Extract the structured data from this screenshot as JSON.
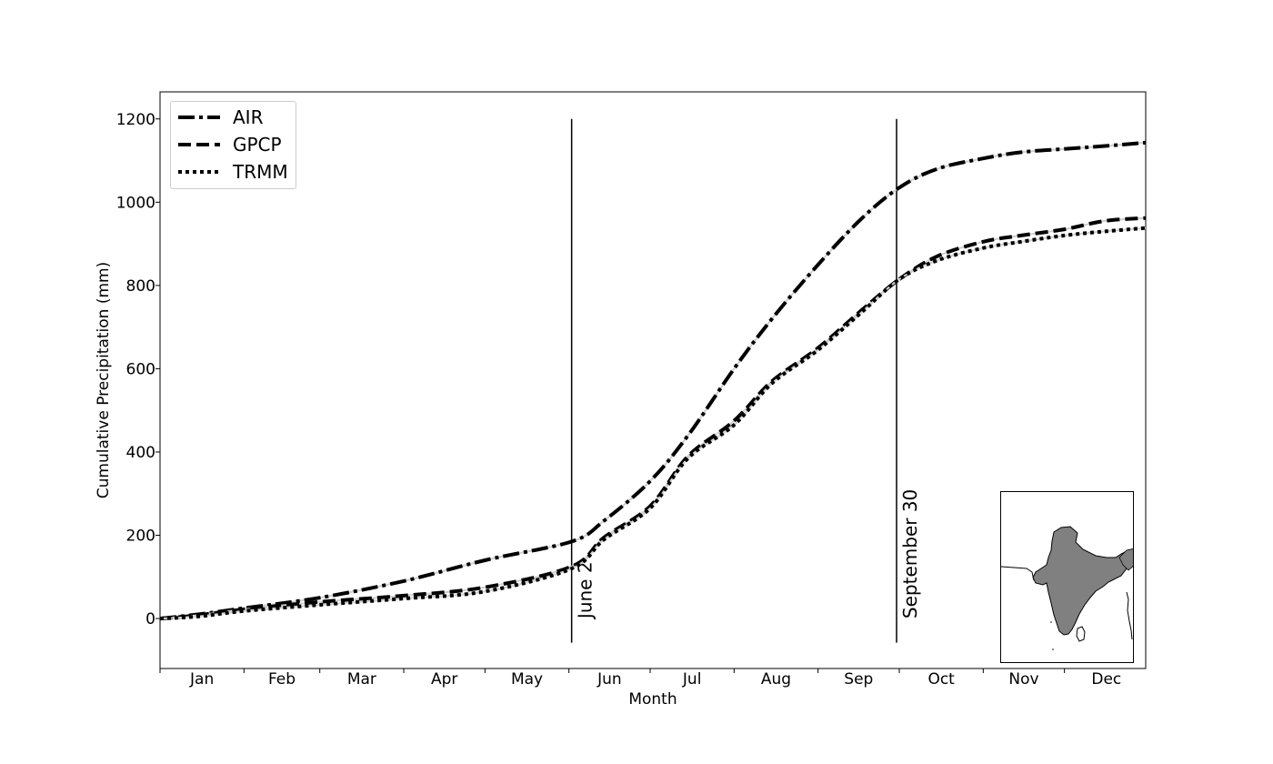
{
  "chart_data": {
    "type": "line",
    "xlabel": "Month",
    "ylabel": "Cumulative Precipitation (mm)",
    "x_unit": "day of year",
    "xlim": [
      1,
      365
    ],
    "ylim": [
      -120,
      1265
    ],
    "yticks": [
      0,
      200,
      400,
      600,
      800,
      1000,
      1200
    ],
    "months": [
      "Jan",
      "Feb",
      "Mar",
      "Apr",
      "May",
      "Jun",
      "Jul",
      "Aug",
      "Sep",
      "Oct",
      "Nov",
      "Dec"
    ],
    "grid": false,
    "legend_position": "top-left",
    "series": [
      {
        "name": "AIR",
        "style": "dashdot",
        "x": [
          1,
          15,
          32,
          60,
          91,
          121,
          153,
          165,
          182,
          196,
          213,
          227,
          244,
          260,
          274,
          288,
          305,
          319,
          335,
          350,
          365
        ],
        "y": [
          0,
          10,
          25,
          50,
          90,
          140,
          185,
          235,
          330,
          440,
          600,
          720,
          850,
          960,
          1035,
          1080,
          1105,
          1120,
          1128,
          1135,
          1143
        ]
      },
      {
        "name": "GPCP",
        "style": "dashed",
        "x": [
          1,
          15,
          32,
          60,
          91,
          121,
          153,
          165,
          182,
          196,
          213,
          227,
          244,
          260,
          274,
          288,
          305,
          319,
          335,
          350,
          365
        ],
        "y": [
          0,
          8,
          22,
          40,
          55,
          75,
          125,
          195,
          270,
          390,
          475,
          570,
          650,
          740,
          815,
          870,
          905,
          920,
          935,
          955,
          962
        ]
      },
      {
        "name": "TRMM",
        "style": "dotted",
        "x": [
          1,
          15,
          32,
          60,
          91,
          121,
          153,
          165,
          182,
          196,
          213,
          227,
          244,
          260,
          274,
          288,
          305,
          319,
          335,
          350,
          365
        ],
        "y": [
          0,
          5,
          18,
          33,
          48,
          65,
          120,
          190,
          265,
          385,
          465,
          565,
          645,
          735,
          815,
          860,
          890,
          905,
          920,
          930,
          938
        ]
      }
    ],
    "vlines": [
      {
        "x": 153,
        "label": "June 2"
      },
      {
        "x": 273,
        "label": "September 30"
      }
    ]
  },
  "colors": {
    "lines": "#000000",
    "land": "#808080"
  }
}
